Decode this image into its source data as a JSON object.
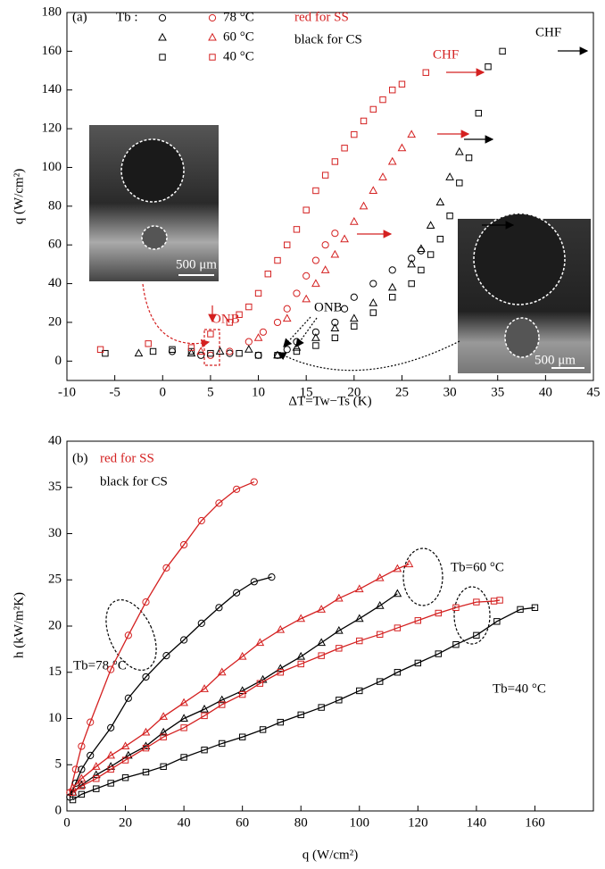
{
  "chart_data": [
    {
      "type": "scatter",
      "panel_label": "(a)",
      "x_label": "ΔT=Tw−Ts (K)",
      "y_label": "q (W/cm²)",
      "legend_title": "Tb :",
      "notes": [
        "red for SS",
        "black for CS"
      ],
      "annotations": [
        "CHF",
        "CHF",
        "ONB",
        "ONB",
        "500 μm",
        "500 μm"
      ],
      "xlim": [
        -10,
        45
      ],
      "ylim": [
        -10,
        180
      ],
      "xticks": [
        -10,
        -5,
        0,
        5,
        10,
        15,
        20,
        25,
        30,
        35,
        40,
        45
      ],
      "yticks": [
        0,
        20,
        40,
        60,
        80,
        100,
        120,
        140,
        160,
        180
      ],
      "series": [
        {
          "name": "78 °C",
          "color": "#000000",
          "marker": "circle",
          "x": [
            1,
            4,
            7,
            10,
            12,
            13,
            14,
            16,
            18,
            19,
            20,
            22,
            24,
            26,
            27
          ],
          "values": [
            5,
            3,
            4,
            3,
            3,
            6,
            10,
            15,
            20,
            27,
            33,
            40,
            47,
            53,
            57
          ]
        },
        {
          "name": "78 °C",
          "color": "#d42020",
          "marker": "circle",
          "x": [
            5,
            7,
            9,
            10.5,
            12,
            13,
            14,
            15,
            16,
            17,
            18
          ],
          "values": [
            3,
            5,
            10,
            15,
            20,
            27,
            35,
            44,
            52,
            60,
            66
          ]
        },
        {
          "name": "60 °C",
          "color": "#000000",
          "marker": "triangle",
          "x": [
            -2.5,
            3,
            6,
            9,
            12,
            14,
            16,
            18,
            20,
            22,
            24,
            26,
            27,
            28,
            29,
            30,
            31
          ],
          "values": [
            4,
            4,
            5,
            6,
            3,
            7,
            12,
            17,
            22,
            30,
            38,
            50,
            58,
            70,
            82,
            95,
            108
          ]
        },
        {
          "name": "60 °C",
          "color": "#d42020",
          "marker": "triangle",
          "x": [
            4,
            10,
            13,
            15,
            16,
            17,
            18,
            19,
            20,
            21,
            22,
            23,
            24,
            25,
            26
          ],
          "values": [
            5,
            12,
            22,
            32,
            40,
            47,
            55,
            63,
            72,
            80,
            88,
            95,
            103,
            110,
            117
          ]
        },
        {
          "name": "40 °C",
          "color": "#000000",
          "marker": "square",
          "x": [
            -6,
            -1,
            1,
            3,
            5,
            8,
            10,
            12,
            14,
            16,
            18,
            20,
            22,
            24,
            26,
            27,
            28,
            29,
            30,
            31,
            32,
            33,
            34,
            35.5
          ],
          "values": [
            4,
            5,
            6,
            5,
            4,
            4,
            3,
            3,
            5,
            8,
            12,
            18,
            25,
            33,
            40,
            47,
            55,
            63,
            75,
            92,
            105,
            128,
            152,
            160
          ]
        },
        {
          "name": "40 °C",
          "color": "#d42020",
          "marker": "square",
          "x": [
            -6.5,
            -1.5,
            3,
            5,
            7,
            8,
            9,
            10,
            11,
            12,
            13,
            14,
            15,
            16,
            17,
            18,
            19,
            20,
            21,
            22,
            23,
            24,
            25,
            27.5
          ],
          "values": [
            6,
            9,
            7,
            14,
            20,
            24,
            28,
            35,
            45,
            52,
            60,
            68,
            78,
            88,
            96,
            103,
            110,
            117,
            124,
            130,
            135,
            140,
            143,
            149
          ]
        }
      ]
    },
    {
      "type": "line",
      "panel_label": "(b)",
      "x_label": "q (W/cm²)",
      "y_label": "h (kW/m²K)",
      "notes": [
        "red for SS",
        "black for CS"
      ],
      "annotations": [
        "Tb=78 °C",
        "Tb=60 °C",
        "Tb=40 °C"
      ],
      "xlim": [
        0,
        180
      ],
      "ylim": [
        0,
        40
      ],
      "xticks": [
        0,
        20,
        40,
        60,
        80,
        100,
        120,
        140,
        160
      ],
      "yticks": [
        0,
        5,
        10,
        15,
        20,
        25,
        30,
        35,
        40
      ],
      "series": [
        {
          "color": "#d42020",
          "marker": "circle",
          "x": [
            1,
            3,
            5,
            8,
            15,
            21,
            27,
            34,
            40,
            46,
            52,
            58,
            64
          ],
          "values": [
            2,
            4.5,
            7,
            9.6,
            15.3,
            19,
            22.6,
            26.3,
            28.8,
            31.4,
            33.3,
            34.8,
            35.6
          ]
        },
        {
          "color": "#000000",
          "marker": "circle",
          "x": [
            1,
            3,
            5,
            8,
            15,
            21,
            27,
            34,
            40,
            46,
            52,
            58,
            64,
            70
          ],
          "values": [
            1.5,
            3,
            4.5,
            6,
            9,
            12.2,
            14.5,
            16.8,
            18.5,
            20.3,
            22,
            23.6,
            24.8,
            25.3
          ]
        },
        {
          "color": "#d42020",
          "marker": "triangle",
          "x": [
            2,
            5,
            10,
            15,
            20,
            27,
            33,
            40,
            47,
            53,
            60,
            66,
            73,
            80,
            87,
            93,
            100,
            107,
            113,
            117
          ],
          "values": [
            2.5,
            3.5,
            4.8,
            6,
            7,
            8.5,
            10.2,
            11.7,
            13.2,
            15,
            16.7,
            18.2,
            19.6,
            20.8,
            21.8,
            23,
            24,
            25.2,
            26.2,
            26.7
          ]
        },
        {
          "color": "#000000",
          "marker": "triangle",
          "x": [
            2,
            5,
            10,
            15,
            21,
            27,
            33,
            40,
            47,
            53,
            60,
            67,
            73,
            80,
            87,
            93,
            100,
            107,
            113
          ],
          "values": [
            2,
            2.8,
            3.9,
            4.8,
            6,
            7,
            8.5,
            10,
            11,
            12,
            13,
            14.2,
            15.4,
            16.7,
            18.2,
            19.5,
            20.8,
            22.2,
            23.5
          ]
        },
        {
          "color": "#d42020",
          "marker": "square",
          "x": [
            2,
            5,
            10,
            15,
            20,
            27,
            33,
            40,
            47,
            53,
            60,
            66,
            73,
            80,
            87,
            93,
            100,
            107,
            113,
            120,
            127,
            133,
            140,
            146,
            148
          ],
          "values": [
            2,
            2.7,
            3.5,
            4.5,
            5.5,
            6.8,
            8,
            9,
            10.3,
            11.5,
            12.6,
            13.8,
            15,
            15.9,
            16.8,
            17.6,
            18.4,
            19.1,
            19.8,
            20.6,
            21.4,
            22,
            22.6,
            22.7,
            22.8
          ]
        },
        {
          "color": "#000000",
          "marker": "square",
          "x": [
            2,
            5,
            10,
            15,
            20,
            27,
            33,
            40,
            47,
            53,
            60,
            67,
            73,
            80,
            87,
            93,
            100,
            107,
            113,
            120,
            127,
            133,
            140,
            147,
            155,
            160
          ],
          "values": [
            1.2,
            1.8,
            2.4,
            3,
            3.6,
            4.2,
            4.8,
            5.8,
            6.6,
            7.3,
            8,
            8.8,
            9.6,
            10.4,
            11.2,
            12,
            13,
            14,
            15,
            16,
            17,
            18,
            19,
            20.5,
            21.8,
            22
          ]
        }
      ]
    }
  ]
}
